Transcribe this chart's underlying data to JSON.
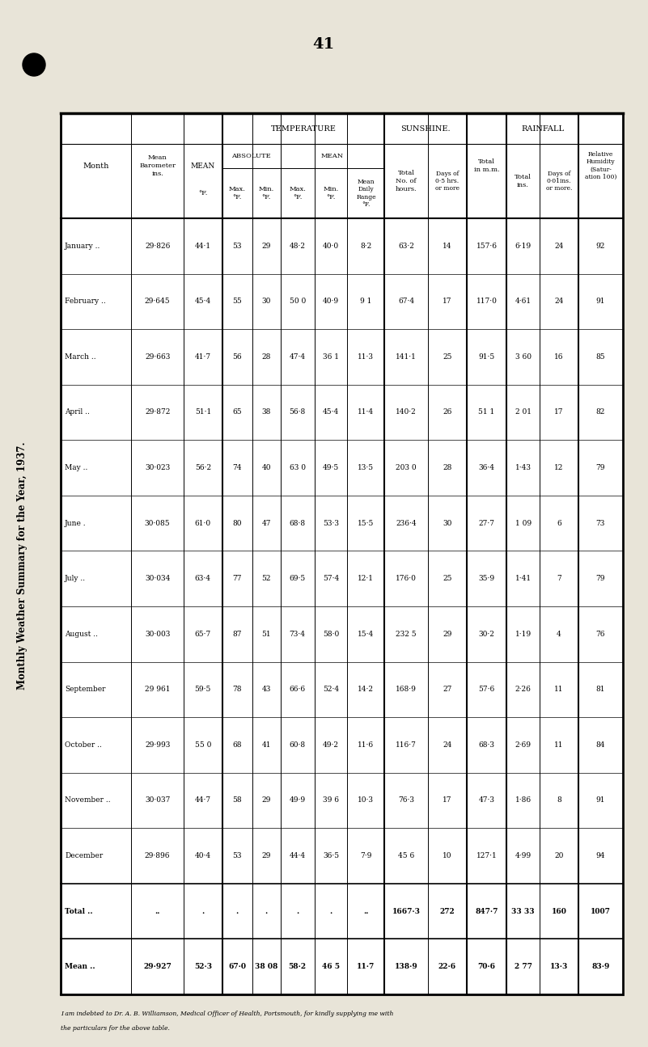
{
  "title": "Monthly Weather Summary for the Year, 1937.",
  "page_number": "41",
  "bg_color": "#e8e4d8",
  "footnote_line1": "I am indebted to Dr. A. B. Williamson, Medical Officer of Health, Portsmouth, for kindly supplying me with",
  "footnote_line2": "the particulars for the above table.",
  "months": [
    "January ..",
    "February ..",
    "March ..",
    "April ..",
    "May ..",
    "June .",
    "July ..",
    "August ..",
    "September",
    "October ..",
    "November ..",
    "December",
    "Total ..",
    "Mean .."
  ],
  "col_headers": {
    "month": "Month",
    "barometer": [
      "Mean",
      "Barometer",
      "ins."
    ],
    "mean_temp": [
      "MEAN",
      "°F."
    ],
    "abs_max": [
      "Max.",
      "°F."
    ],
    "abs_min": [
      "Min.",
      "°F."
    ],
    "mean_max": [
      "Max.",
      "°F."
    ],
    "mean_min": [
      "Min.",
      "°F."
    ],
    "daily_range": [
      "Mean",
      "Daily",
      "Range",
      "°F."
    ],
    "sun_hrs": [
      "Total",
      "No. of",
      "hours."
    ],
    "sun_days": [
      "Days of",
      "0·5hrs.",
      "or more"
    ],
    "rain_mm": [
      "Total",
      "m.m."
    ],
    "rain_ins": [
      "Total",
      "ins."
    ],
    "rain_days": [
      "Days of",
      "0·01ins.",
      "or more."
    ],
    "rel_hum": [
      "Relative",
      "Humidity",
      "(Satur-",
      "ation 100)"
    ]
  },
  "group_labels": {
    "temperature": "TEMPERATURE",
    "absolute": "ABSOLUTE",
    "mean_sub": "MEAN",
    "sunshine": "SUNSHINE.",
    "rainfall": "RAINFALL"
  },
  "mean_temp_label": "MEAN",
  "data": {
    "mean_barometer": [
      "29·826",
      "29·645",
      "29·663",
      "29·872",
      "30·023",
      "30·085",
      "30·034",
      "30·003",
      "29 961",
      "29·993",
      "30·037",
      "29·896",
      "..",
      "29·927"
    ],
    "mean_temp": [
      "44·1",
      "45·4",
      "41·7",
      "51·1",
      "56·2",
      "61·0",
      "63·4",
      "65·7",
      "59·5",
      "55 0",
      "44·7",
      "40·4",
      ".",
      "52·3"
    ],
    "abs_max": [
      "53",
      "55",
      "56",
      "65",
      "74",
      "80",
      "77",
      "87",
      "78",
      "68",
      "58",
      "53",
      ".",
      "67·0"
    ],
    "abs_min": [
      "29",
      "30",
      "28",
      "38",
      "40",
      "47",
      "52",
      "51",
      "43",
      "41",
      "29",
      "29",
      ".",
      "38 08"
    ],
    "mean_max": [
      "48·2",
      "50 0",
      "47·4",
      "56·8",
      "63 0",
      "68·8",
      "69·5",
      "73·4",
      "66·6",
      "60·8",
      "49·9",
      "44·4",
      ".",
      "58·2"
    ],
    "mean_min": [
      "40·0",
      "40·9",
      "36 1",
      "45·4",
      "49·5",
      "53·3",
      "57·4",
      "58·0",
      "52·4",
      "49·2",
      "39 6",
      "36·5",
      ".",
      "46 5"
    ],
    "mean_daily_range": [
      "8·2",
      "9 1",
      "11·3",
      "11·4",
      "13·5",
      "15·5",
      "12·1",
      "15·4",
      "14·2",
      "11·6",
      "10·3",
      "7·9",
      "..",
      "11·7"
    ],
    "sunshine_total_hrs": [
      "63·2",
      "67·4",
      "141·1",
      "140·2",
      "203 0",
      "236·4",
      "176·0",
      "232 5",
      "168·9",
      "116·7",
      "76·3",
      "45 6",
      "1667·3",
      "138·9"
    ],
    "sunshine_days": [
      "14",
      "17",
      "25",
      "26",
      "28",
      "30",
      "25",
      "29",
      "27",
      "24",
      "17",
      "10",
      "272",
      "22·6"
    ],
    "rain_total_mm": [
      "157·6",
      "117·0",
      "91·5",
      "51 1",
      "36·4",
      "27·7",
      "35·9",
      "30·2",
      "57·6",
      "68·3",
      "47·3",
      "127·1",
      "847·7",
      "70·6"
    ],
    "rain_total_ins": [
      "6·19",
      "4·61",
      "3 60",
      "2 01",
      "1·43",
      "1 09",
      "1·41",
      "1·19",
      "2·26",
      "2·69",
      "1·86",
      "4·99",
      "33 33",
      "2 77"
    ],
    "rain_days": [
      "24",
      "24",
      "16",
      "17",
      "12",
      "6",
      "7",
      "4",
      "11",
      "11",
      "8",
      "20",
      "160",
      "13·3"
    ],
    "rel_humidity": [
      "92",
      "91",
      "85",
      "82",
      "79",
      "73",
      "79",
      "76",
      "81",
      "84",
      "91",
      "94",
      "1007",
      "83·9"
    ]
  }
}
